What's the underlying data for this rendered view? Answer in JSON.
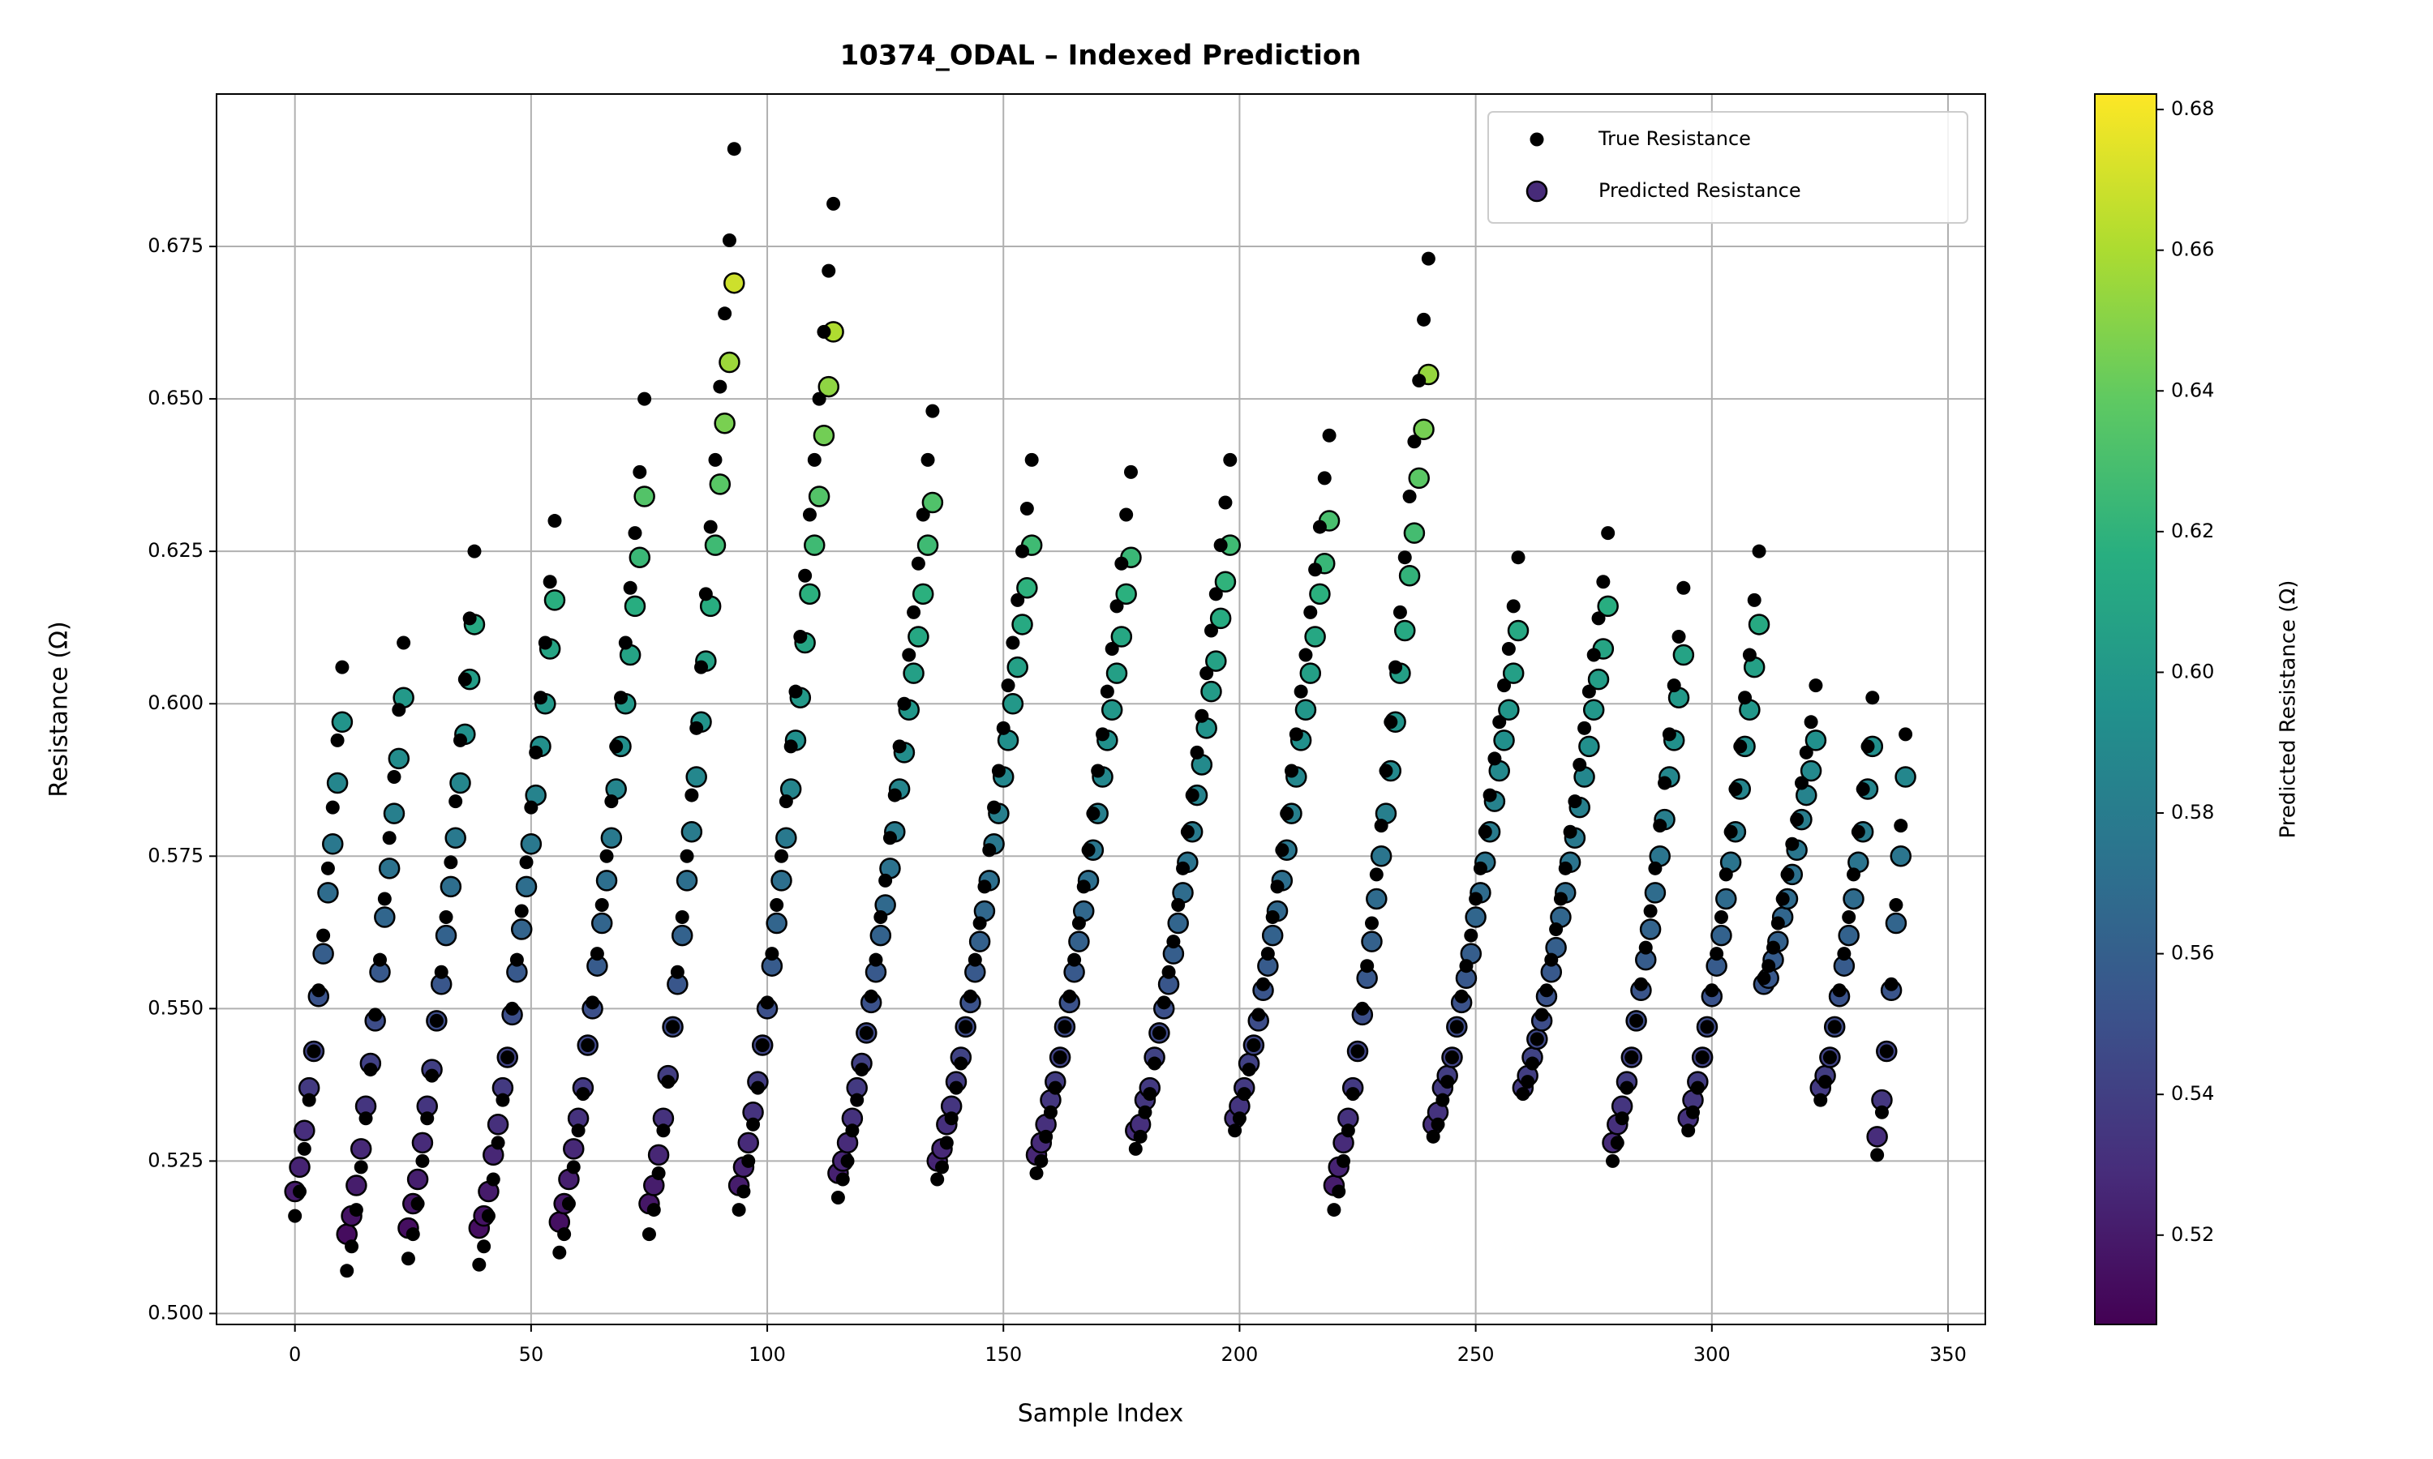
{
  "chart_data": {
    "type": "scatter",
    "title": "10374_ODAL – Indexed Prediction",
    "x_label": "Sample Index",
    "y_label": "Resistance (Ω)",
    "xlim": [
      -16.6,
      357.9
    ],
    "ylim": [
      0.4982,
      0.7
    ],
    "xticks": [
      0,
      50,
      100,
      150,
      200,
      250,
      300,
      350
    ],
    "yticks": [
      {
        "value": 0.5,
        "label": "0.500"
      },
      0.525,
      {
        "value": 0.55,
        "label": "0.550"
      },
      0.575,
      {
        "value": 0.6,
        "label": "0.600"
      },
      0.625,
      {
        "value": 0.65,
        "label": "0.650"
      },
      0.675
    ],
    "grid": true,
    "legend": "upper right",
    "colorbar": {
      "label": "Predicted Resistance (Ω)",
      "lim": [
        0.5073,
        0.6822
      ],
      "ticks": [
        0.52,
        0.54,
        0.56,
        0.58,
        {
          "value": 0.6,
          "label": "0.60"
        },
        0.62,
        0.64,
        0.66,
        0.68
      ]
    },
    "x": [
      0,
      1,
      2,
      3,
      4,
      5,
      6,
      7,
      8,
      9,
      10,
      11,
      12,
      13,
      14,
      15,
      16,
      17,
      18,
      19,
      20,
      21,
      22,
      23,
      24,
      25,
      26,
      27,
      28,
      29,
      30,
      31,
      32,
      33,
      34,
      35,
      36,
      37,
      38,
      39,
      40,
      41,
      42,
      43,
      44,
      45,
      46,
      47,
      48,
      49,
      50,
      51,
      52,
      53,
      54,
      55,
      56,
      57,
      58,
      59,
      60,
      61,
      62,
      63,
      64,
      65,
      66,
      67,
      68,
      69,
      70,
      71,
      72,
      73,
      74,
      75,
      76,
      77,
      78,
      79,
      80,
      81,
      82,
      83,
      84,
      85,
      86,
      87,
      88,
      89,
      90,
      91,
      92,
      93,
      94,
      95,
      96,
      97,
      98,
      99,
      100,
      101,
      102,
      103,
      104,
      105,
      106,
      107,
      108,
      109,
      110,
      111,
      112,
      113,
      114,
      115,
      116,
      117,
      118,
      119,
      120,
      121,
      122,
      123,
      124,
      125,
      126,
      127,
      128,
      129,
      130,
      131,
      132,
      133,
      134,
      135,
      136,
      137,
      138,
      139,
      140,
      141,
      142,
      143,
      144,
      145,
      146,
      147,
      148,
      149,
      150,
      151,
      152,
      153,
      154,
      155,
      156,
      157,
      158,
      159,
      160,
      161,
      162,
      163,
      164,
      165,
      166,
      167,
      168,
      169,
      170,
      171,
      172,
      173,
      174,
      175,
      176,
      177,
      178,
      179,
      180,
      181,
      182,
      183,
      184,
      185,
      186,
      187,
      188,
      189,
      190,
      191,
      192,
      193,
      194,
      195,
      196,
      197,
      198,
      199,
      200,
      201,
      202,
      203,
      204,
      205,
      206,
      207,
      208,
      209,
      210,
      211,
      212,
      213,
      214,
      215,
      216,
      217,
      218,
      219,
      220,
      221,
      222,
      223,
      224,
      225,
      226,
      227,
      228,
      229,
      230,
      231,
      232,
      233,
      234,
      235,
      236,
      237,
      238,
      239,
      240,
      241,
      242,
      243,
      244,
      245,
      246,
      247,
      248,
      249,
      250,
      251,
      252,
      253,
      254,
      255,
      256,
      257,
      258,
      259,
      260,
      261,
      262,
      263,
      264,
      265,
      266,
      267,
      268,
      269,
      270,
      271,
      272,
      273,
      274,
      275,
      276,
      277,
      278,
      279,
      280,
      281,
      282,
      283,
      284,
      285,
      286,
      287,
      288,
      289,
      290,
      291,
      292,
      293,
      294,
      295,
      296,
      297,
      298,
      299,
      300,
      301,
      302,
      303,
      304,
      305,
      306,
      307,
      308,
      309,
      310,
      311,
      312,
      313,
      314,
      315,
      316,
      317,
      318,
      319,
      320,
      321,
      322,
      323,
      324,
      325,
      326,
      327,
      328,
      329,
      330,
      331,
      332,
      333,
      334,
      335,
      336,
      337,
      338,
      339,
      340,
      341
    ],
    "series": [
      {
        "name": "True Resistance",
        "color": "#000000",
        "values": [
          0.516,
          0.52,
          0.527,
          0.535,
          0.543,
          0.553,
          0.562,
          0.573,
          0.583,
          0.594,
          0.606,
          0.507,
          0.511,
          0.517,
          0.524,
          0.532,
          0.54,
          0.549,
          0.558,
          0.568,
          0.578,
          0.588,
          0.599,
          0.61,
          0.509,
          0.513,
          0.518,
          0.525,
          0.532,
          0.539,
          0.548,
          0.556,
          0.565,
          0.574,
          0.584,
          0.594,
          0.604,
          0.614,
          0.625,
          0.508,
          0.511,
          0.516,
          0.522,
          0.528,
          0.535,
          0.542,
          0.55,
          0.558,
          0.566,
          0.574,
          0.583,
          0.592,
          0.601,
          0.61,
          0.62,
          0.63,
          0.51,
          0.513,
          0.518,
          0.524,
          0.53,
          0.536,
          0.544,
          0.551,
          0.559,
          0.567,
          0.575,
          0.584,
          0.593,
          0.601,
          0.61,
          0.619,
          0.628,
          0.638,
          0.65,
          0.513,
          0.517,
          0.523,
          0.53,
          0.538,
          0.547,
          0.556,
          0.565,
          0.575,
          0.585,
          0.596,
          0.606,
          0.618,
          0.629,
          0.64,
          0.652,
          0.664,
          0.676,
          0.691,
          0.517,
          0.52,
          0.525,
          0.531,
          0.537,
          0.544,
          0.551,
          0.559,
          0.567,
          0.575,
          0.584,
          0.593,
          0.602,
          0.611,
          0.621,
          0.631,
          0.64,
          0.65,
          0.661,
          0.671,
          0.682,
          0.519,
          0.522,
          0.525,
          0.53,
          0.535,
          0.54,
          0.546,
          0.552,
          0.558,
          0.565,
          0.571,
          0.578,
          0.585,
          0.593,
          0.6,
          0.608,
          0.615,
          0.623,
          0.631,
          0.64,
          0.648,
          0.522,
          0.524,
          0.528,
          0.532,
          0.537,
          0.541,
          0.547,
          0.552,
          0.558,
          0.564,
          0.57,
          0.576,
          0.583,
          0.589,
          0.596,
          0.603,
          0.61,
          0.617,
          0.625,
          0.632,
          0.64,
          0.523,
          0.525,
          0.529,
          0.533,
          0.537,
          0.542,
          0.547,
          0.552,
          0.558,
          0.564,
          0.57,
          0.576,
          0.582,
          0.589,
          0.595,
          0.602,
          0.609,
          0.616,
          0.623,
          0.631,
          0.638,
          0.527,
          0.529,
          0.533,
          0.536,
          0.541,
          0.546,
          0.551,
          0.556,
          0.561,
          0.567,
          0.573,
          0.579,
          0.585,
          0.592,
          0.598,
          0.605,
          0.612,
          0.618,
          0.626,
          0.633,
          0.64,
          0.53,
          0.532,
          0.536,
          0.54,
          0.544,
          0.549,
          0.554,
          0.559,
          0.565,
          0.57,
          0.576,
          0.582,
          0.589,
          0.595,
          0.602,
          0.608,
          0.615,
          0.622,
          0.629,
          0.637,
          0.644,
          0.517,
          0.52,
          0.525,
          0.53,
          0.536,
          0.543,
          0.55,
          0.557,
          0.564,
          0.572,
          0.58,
          0.589,
          0.597,
          0.606,
          0.615,
          0.624,
          0.634,
          0.643,
          0.653,
          0.663,
          0.673,
          0.529,
          0.531,
          0.535,
          0.538,
          0.542,
          0.547,
          0.552,
          0.557,
          0.562,
          0.568,
          0.573,
          0.579,
          0.585,
          0.591,
          0.597,
          0.603,
          0.609,
          0.616,
          0.624,
          0.536,
          0.538,
          0.541,
          0.545,
          0.549,
          0.553,
          0.558,
          0.563,
          0.568,
          0.573,
          0.579,
          0.584,
          0.59,
          0.596,
          0.602,
          0.608,
          0.614,
          0.62,
          0.628,
          0.525,
          0.528,
          0.532,
          0.537,
          0.542,
          0.548,
          0.554,
          0.56,
          0.566,
          0.573,
          0.58,
          0.587,
          0.595,
          0.603,
          0.611,
          0.619,
          0.53,
          0.533,
          0.537,
          0.542,
          0.547,
          0.553,
          0.559,
          0.565,
          0.572,
          0.579,
          0.586,
          0.593,
          0.601,
          0.608,
          0.617,
          0.625,
          0.555,
          0.557,
          0.56,
          0.564,
          0.568,
          0.572,
          0.577,
          0.581,
          0.587,
          0.592,
          0.597,
          0.603,
          0.535,
          0.538,
          0.542,
          0.547,
          0.553,
          0.559,
          0.565,
          0.572,
          0.579,
          0.586,
          0.593,
          0.601,
          0.526,
          0.533,
          0.543,
          0.554,
          0.567,
          0.58,
          0.595
        ]
      },
      {
        "name": "Predicted Resistance",
        "cmap": "viridis",
        "values": [
          0.52,
          0.524,
          0.53,
          0.537,
          0.543,
          0.552,
          0.559,
          0.569,
          0.577,
          0.587,
          0.597,
          0.513,
          0.516,
          0.521,
          0.527,
          0.534,
          0.541,
          0.548,
          0.556,
          0.565,
          0.573,
          0.582,
          0.591,
          0.601,
          0.514,
          0.518,
          0.522,
          0.528,
          0.534,
          0.54,
          0.548,
          0.554,
          0.562,
          0.57,
          0.578,
          0.587,
          0.595,
          0.604,
          0.613,
          0.514,
          0.516,
          0.52,
          0.526,
          0.531,
          0.537,
          0.542,
          0.549,
          0.556,
          0.563,
          0.57,
          0.577,
          0.585,
          0.593,
          0.6,
          0.609,
          0.617,
          0.515,
          0.518,
          0.522,
          0.527,
          0.532,
          0.537,
          0.544,
          0.55,
          0.557,
          0.564,
          0.571,
          0.578,
          0.586,
          0.593,
          0.6,
          0.608,
          0.616,
          0.624,
          0.634,
          0.518,
          0.521,
          0.526,
          0.532,
          0.539,
          0.547,
          0.554,
          0.562,
          0.571,
          0.579,
          0.588,
          0.597,
          0.607,
          0.616,
          0.626,
          0.636,
          0.646,
          0.656,
          0.669,
          0.521,
          0.524,
          0.528,
          0.533,
          0.538,
          0.544,
          0.55,
          0.557,
          0.564,
          0.571,
          0.578,
          0.586,
          0.594,
          0.601,
          0.61,
          0.618,
          0.626,
          0.634,
          0.644,
          0.652,
          0.661,
          0.523,
          0.525,
          0.528,
          0.532,
          0.537,
          0.541,
          0.546,
          0.551,
          0.556,
          0.562,
          0.567,
          0.573,
          0.579,
          0.586,
          0.592,
          0.599,
          0.605,
          0.611,
          0.618,
          0.626,
          0.633,
          0.525,
          0.527,
          0.531,
          0.534,
          0.538,
          0.542,
          0.547,
          0.551,
          0.556,
          0.561,
          0.566,
          0.571,
          0.577,
          0.582,
          0.588,
          0.594,
          0.6,
          0.606,
          0.613,
          0.619,
          0.626,
          0.526,
          0.528,
          0.531,
          0.535,
          0.538,
          0.542,
          0.547,
          0.551,
          0.556,
          0.561,
          0.566,
          0.571,
          0.576,
          0.582,
          0.588,
          0.594,
          0.599,
          0.605,
          0.611,
          0.618,
          0.624,
          0.53,
          0.531,
          0.535,
          0.537,
          0.542,
          0.546,
          0.55,
          0.554,
          0.559,
          0.564,
          0.569,
          0.574,
          0.579,
          0.585,
          0.59,
          0.596,
          0.602,
          0.607,
          0.614,
          0.62,
          0.626,
          0.532,
          0.534,
          0.537,
          0.541,
          0.544,
          0.548,
          0.553,
          0.557,
          0.562,
          0.566,
          0.571,
          0.576,
          0.582,
          0.588,
          0.594,
          0.599,
          0.605,
          0.611,
          0.618,
          0.623,
          0.63,
          0.521,
          0.524,
          0.528,
          0.532,
          0.537,
          0.543,
          0.549,
          0.555,
          0.561,
          0.568,
          0.575,
          0.582,
          0.589,
          0.597,
          0.605,
          0.612,
          0.621,
          0.628,
          0.637,
          0.645,
          0.654,
          0.531,
          0.533,
          0.537,
          0.539,
          0.542,
          0.547,
          0.551,
          0.555,
          0.559,
          0.565,
          0.569,
          0.574,
          0.579,
          0.584,
          0.589,
          0.594,
          0.599,
          0.605,
          0.612,
          0.537,
          0.539,
          0.542,
          0.545,
          0.548,
          0.552,
          0.556,
          0.56,
          0.565,
          0.569,
          0.574,
          0.578,
          0.583,
          0.588,
          0.593,
          0.599,
          0.604,
          0.609,
          0.616,
          0.528,
          0.531,
          0.534,
          0.538,
          0.542,
          0.548,
          0.553,
          0.558,
          0.563,
          0.569,
          0.575,
          0.581,
          0.588,
          0.594,
          0.601,
          0.608,
          0.532,
          0.535,
          0.538,
          0.542,
          0.547,
          0.552,
          0.557,
          0.562,
          0.568,
          0.574,
          0.579,
          0.586,
          0.593,
          0.599,
          0.606,
          0.613,
          0.554,
          0.555,
          0.558,
          0.561,
          0.565,
          0.568,
          0.572,
          0.576,
          0.581,
          0.585,
          0.589,
          0.594,
          0.537,
          0.539,
          0.542,
          0.547,
          0.552,
          0.557,
          0.562,
          0.568,
          0.574,
          0.579,
          0.586,
          0.593,
          0.529,
          0.535,
          0.543,
          0.553,
          0.564,
          0.575,
          0.588
        ]
      }
    ]
  }
}
